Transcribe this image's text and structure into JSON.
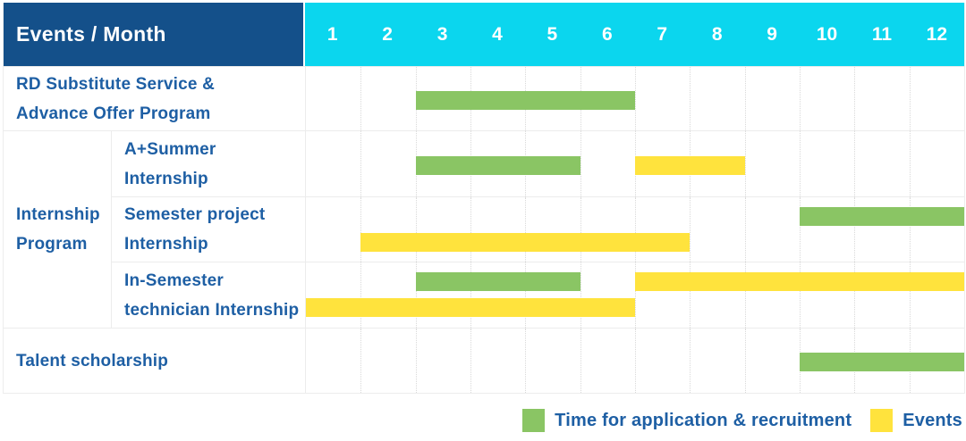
{
  "chart_data": {
    "type": "gantt",
    "corner_label": "Events / Month",
    "months": [
      "1",
      "2",
      "3",
      "4",
      "5",
      "6",
      "7",
      "8",
      "9",
      "10",
      "11",
      "12"
    ],
    "group_label": "Internship Program",
    "group_label_lines": [
      "Internship",
      "Program"
    ],
    "rows": [
      {
        "label": "RD Substitute Service & Advance Offer Program",
        "label_lines": [
          "RD Substitute Service &",
          "Advance Offer Program"
        ],
        "bars": [
          {
            "series": "application",
            "start_month": 3,
            "end_month": 6,
            "line": "center"
          }
        ]
      },
      {
        "group": "Internship Program",
        "label": "A+Summer Internship",
        "label_lines": [
          "A+Summer",
          "Internship"
        ],
        "bars": [
          {
            "series": "application",
            "start_month": 3,
            "end_month": 5,
            "line": "center"
          },
          {
            "series": "event",
            "start_month": 7,
            "end_month": 8,
            "line": "center"
          }
        ]
      },
      {
        "group": "Internship Program",
        "label": "Semester project Internship",
        "label_lines": [
          "Semester project",
          "Internship"
        ],
        "bars": [
          {
            "series": "application",
            "start_month": 10,
            "end_month": 12,
            "line": "top"
          },
          {
            "series": "event",
            "start_month": 2,
            "end_month": 7,
            "line": "bottom"
          }
        ]
      },
      {
        "group": "Internship Program",
        "label": "In-Semester technician Internship",
        "label_lines": [
          "In-Semester",
          "technician Internship"
        ],
        "bars": [
          {
            "series": "application",
            "start_month": 3,
            "end_month": 5,
            "line": "top"
          },
          {
            "series": "event",
            "start_month": 7,
            "end_month": 12,
            "line": "top"
          },
          {
            "series": "event",
            "start_month": 1,
            "end_month": 6,
            "line": "bottom"
          }
        ]
      },
      {
        "label": "Talent scholarship",
        "label_lines": [
          "Talent scholarship"
        ],
        "bars": [
          {
            "series": "application",
            "start_month": 10,
            "end_month": 12,
            "line": "center"
          }
        ]
      }
    ],
    "legend": [
      {
        "series": "application",
        "label": "Time for application & recruitment",
        "color": "#8ac564"
      },
      {
        "series": "event",
        "label": "Events",
        "color": "#ffe33d"
      }
    ],
    "colors": {
      "application": "#8ac564",
      "event": "#ffe33d",
      "header_navy": "#14508a",
      "header_cyan": "#0bd6ee",
      "label_text": "#1e5fa4"
    },
    "layout_hints": {
      "x_range": [
        1,
        12
      ],
      "grid": "dotted vertical month lines",
      "legend_position": "bottom-right"
    }
  }
}
